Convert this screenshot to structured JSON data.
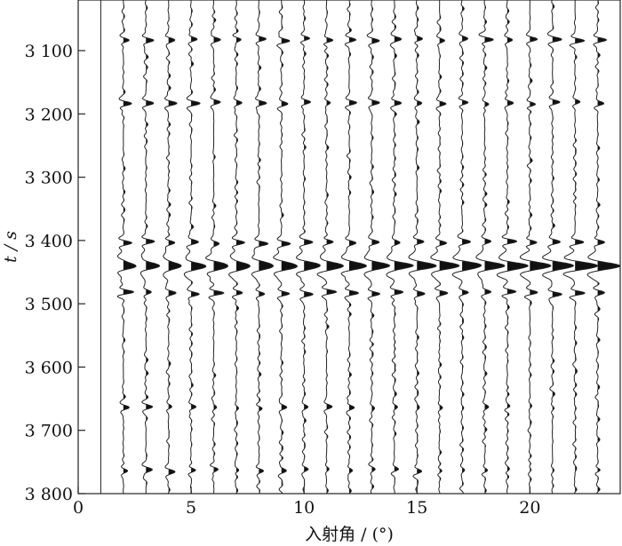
{
  "chart_data": {
    "type": "seismic-wiggle",
    "xlabel": "入射角 / (°)",
    "ylabel": "t / s",
    "xlim": [
      0,
      24
    ],
    "ylim": [
      3020,
      3800
    ],
    "y_reversed": true,
    "grid": false,
    "x_ticks": [
      {
        "value": 0,
        "label": "0"
      },
      {
        "value": 5,
        "label": "5"
      },
      {
        "value": 10,
        "label": "10"
      },
      {
        "value": 15,
        "label": "15"
      },
      {
        "value": 20,
        "label": "20"
      }
    ],
    "y_ticks": [
      {
        "value": 3100,
        "label": "3 100"
      },
      {
        "value": 3200,
        "label": "3 200"
      },
      {
        "value": 3300,
        "label": "3 300"
      },
      {
        "value": 3400,
        "label": "3 400"
      },
      {
        "value": 3500,
        "label": "3 500"
      },
      {
        "value": 3600,
        "label": "3 600"
      },
      {
        "value": 3700,
        "label": "3 700"
      },
      {
        "value": 3800,
        "label": "3 800"
      }
    ],
    "traces_x": [
      1,
      2,
      3,
      4,
      5,
      6,
      7,
      8,
      9,
      10,
      11,
      12,
      13,
      14,
      15,
      16,
      17,
      18,
      19,
      20,
      21,
      22,
      23
    ],
    "main_event": {
      "t": 3440,
      "amplitude_range": [
        0.55,
        1.05
      ]
    },
    "secondary_events": [
      {
        "t": 3083,
        "amplitude": 0.35
      },
      {
        "t": 3183,
        "amplitude": 0.32
      },
      {
        "t": 3403,
        "amplitude": 0.35
      },
      {
        "t": 3483,
        "amplitude": 0.4
      },
      {
        "t": 3663,
        "amplitude": 0.25
      },
      {
        "t": 3763,
        "amplitude": 0.25
      }
    ]
  }
}
